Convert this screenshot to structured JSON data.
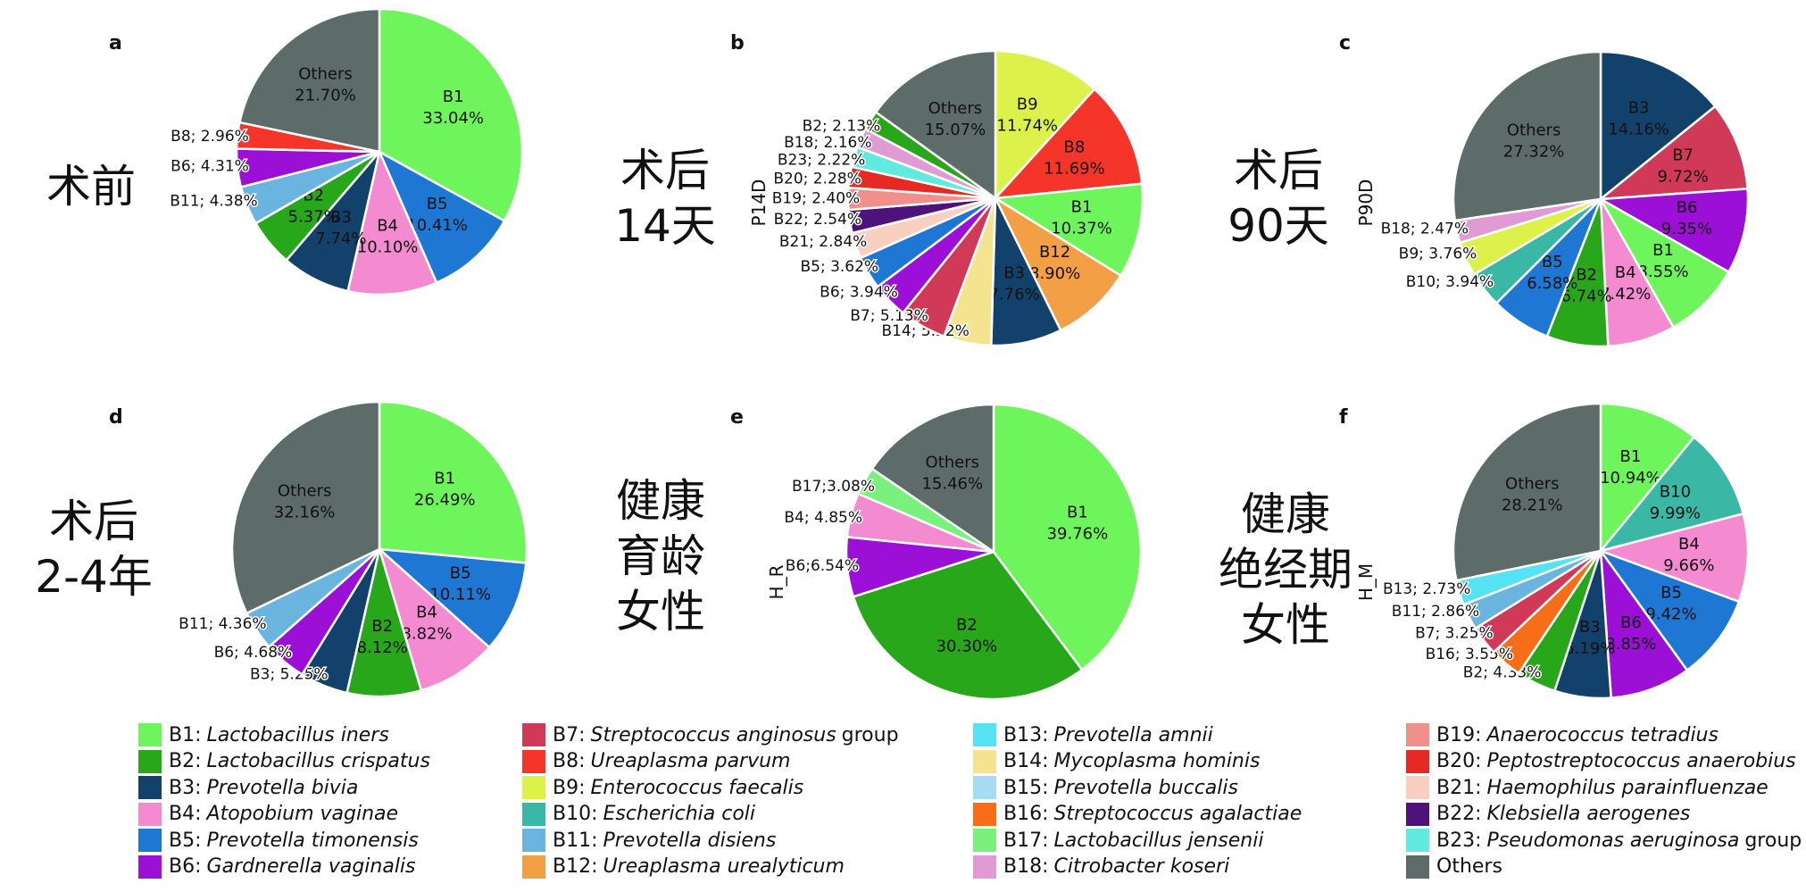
{
  "colors": {
    "B1": "#6ef55b",
    "B2": "#28a71a",
    "B3": "#12426b",
    "B4": "#f48bd0",
    "B5": "#1f77d4",
    "B6": "#9b0fd6",
    "B7": "#d03a58",
    "B8": "#f5352a",
    "B9": "#dcf24a",
    "B10": "#3ab8a5",
    "B11": "#6ab5e0",
    "B12": "#f39f45",
    "B13": "#55e2f2",
    "B14": "#f5e48f",
    "B15": "#a5dcf2",
    "B16": "#f86e18",
    "B17": "#7af07d",
    "B18": "#e09ad4",
    "B19": "#f1908a",
    "B20": "#e62a23",
    "B21": "#f9cfc2",
    "B22": "#4d127c",
    "B23": "#62eadf",
    "Others": "#5d6b69"
  },
  "chart_data": [
    {
      "type": "pie",
      "panel": "a",
      "group_label": "术前",
      "side_label": "",
      "slices": [
        {
          "code": "B1",
          "value": 33.04,
          "label": "B1\n33.04%",
          "outside": false
        },
        {
          "code": "B5",
          "value": 10.41,
          "label": "B5\n10.41%",
          "outside": false
        },
        {
          "code": "B4",
          "value": 10.1,
          "label": "B4\n10.10%",
          "outside": false
        },
        {
          "code": "B3",
          "value": 7.74,
          "label": "B3\n7.74%",
          "outside": false
        },
        {
          "code": "B2",
          "value": 5.37,
          "label": "B2\n5.37%",
          "outside": false
        },
        {
          "code": "B11",
          "value": 4.38,
          "label": "B11; 4.38%",
          "outside": true
        },
        {
          "code": "B6",
          "value": 4.31,
          "label": "B6; 4.31%",
          "outside": true
        },
        {
          "code": "B8",
          "value": 2.96,
          "label": "B8; 2.96%",
          "outside": true
        },
        {
          "code": "Others",
          "value": 21.7,
          "label": "Others\n21.70%",
          "outside": false
        }
      ]
    },
    {
      "type": "pie",
      "panel": "b",
      "group_label": "术后\n14天",
      "side_label": "P14D",
      "slices": [
        {
          "code": "B9",
          "value": 11.74,
          "label": "B9\n11.74%",
          "outside": false
        },
        {
          "code": "B8",
          "value": 11.69,
          "label": "B8\n11.69%",
          "outside": false
        },
        {
          "code": "B1",
          "value": 10.37,
          "label": "B1\n10.37%",
          "outside": false
        },
        {
          "code": "B12",
          "value": 8.9,
          "label": "B12\n8.90%",
          "outside": false
        },
        {
          "code": "B3",
          "value": 7.76,
          "label": "B3\n7.76%",
          "outside": false
        },
        {
          "code": "B14",
          "value": 5.22,
          "label": "B14; 5.22%",
          "outside": true
        },
        {
          "code": "B7",
          "value": 5.13,
          "label": "B7; 5.13%",
          "outside": true
        },
        {
          "code": "B6",
          "value": 3.94,
          "label": "B6; 3.94%",
          "outside": true
        },
        {
          "code": "B5",
          "value": 3.62,
          "label": "B5; 3.62%",
          "outside": true
        },
        {
          "code": "B21",
          "value": 2.84,
          "label": "B21; 2.84%",
          "outside": true
        },
        {
          "code": "B22",
          "value": 2.54,
          "label": "B22; 2.54%",
          "outside": true
        },
        {
          "code": "B19",
          "value": 2.4,
          "label": "B19; 2.40%",
          "outside": true
        },
        {
          "code": "B20",
          "value": 2.28,
          "label": "B20; 2.28%",
          "outside": true
        },
        {
          "code": "B23",
          "value": 2.22,
          "label": "B23; 2.22%",
          "outside": true
        },
        {
          "code": "B18",
          "value": 2.16,
          "label": "B18; 2.16%",
          "outside": true
        },
        {
          "code": "B2",
          "value": 2.13,
          "label": "B2; 2.13%",
          "outside": true
        },
        {
          "code": "Others",
          "value": 15.07,
          "label": "Others\n15.07%",
          "outside": false
        }
      ]
    },
    {
      "type": "pie",
      "panel": "c",
      "group_label": "术后\n90天",
      "side_label": "P90D",
      "slices": [
        {
          "code": "B3",
          "value": 14.16,
          "label": "B3\n14.16%",
          "outside": false
        },
        {
          "code": "B7",
          "value": 9.72,
          "label": "B7\n9.72%",
          "outside": false
        },
        {
          "code": "B6",
          "value": 9.35,
          "label": "B6\n9.35%",
          "outside": false
        },
        {
          "code": "B1",
          "value": 8.55,
          "label": "B1\n8.55%",
          "outside": false
        },
        {
          "code": "B4",
          "value": 7.42,
          "label": "B4\n7.42%",
          "outside": false
        },
        {
          "code": "B2",
          "value": 6.74,
          "label": "B2\n6.74%",
          "outside": false
        },
        {
          "code": "B5",
          "value": 6.58,
          "label": "B5\n6.58%",
          "outside": false
        },
        {
          "code": "B10",
          "value": 3.94,
          "label": "B10; 3.94%",
          "outside": true
        },
        {
          "code": "B9",
          "value": 3.76,
          "label": "B9; 3.76%",
          "outside": true
        },
        {
          "code": "B18",
          "value": 2.47,
          "label": "B18; 2.47%",
          "outside": true
        },
        {
          "code": "Others",
          "value": 27.32,
          "label": "Others\n27.32%",
          "outside": false
        }
      ]
    },
    {
      "type": "pie",
      "panel": "d",
      "group_label": "术后\n2-4年",
      "side_label": "",
      "slices": [
        {
          "code": "B1",
          "value": 26.49,
          "label": "B1\n26.49%",
          "outside": false
        },
        {
          "code": "B5",
          "value": 10.11,
          "label": "B5\n10.11%",
          "outside": false
        },
        {
          "code": "B4",
          "value": 8.82,
          "label": "B4\n8.82%",
          "outside": false
        },
        {
          "code": "B2",
          "value": 8.12,
          "label": "B2\n8.12%",
          "outside": false
        },
        {
          "code": "B3",
          "value": 5.25,
          "label": "B3; 5.25%",
          "outside": true
        },
        {
          "code": "B6",
          "value": 4.68,
          "label": "B6; 4.68%",
          "outside": true
        },
        {
          "code": "B11",
          "value": 4.36,
          "label": "B11; 4.36%",
          "outside": true
        },
        {
          "code": "Others",
          "value": 32.16,
          "label": "Others\n32.16%",
          "outside": false
        }
      ]
    },
    {
      "type": "pie",
      "panel": "e",
      "group_label": "健康\n育龄\n女性",
      "side_label": "H_R",
      "slices": [
        {
          "code": "B1",
          "value": 39.76,
          "label": "B1\n39.76%",
          "outside": false
        },
        {
          "code": "B2",
          "value": 30.3,
          "label": "B2\n30.30%",
          "outside": false
        },
        {
          "code": "B6",
          "value": 6.54,
          "label": "B6;6.54%",
          "outside": true
        },
        {
          "code": "B4",
          "value": 4.85,
          "label": "B4; 4.85%",
          "outside": true
        },
        {
          "code": "B17",
          "value": 3.08,
          "label": "B17;3.08%",
          "outside": true
        },
        {
          "code": "Others",
          "value": 15.46,
          "label": "Others\n15.46%",
          "outside": false
        }
      ]
    },
    {
      "type": "pie",
      "panel": "f",
      "group_label": "健康\n绝经期\n女性",
      "side_label": "H_M",
      "slices": [
        {
          "code": "B1",
          "value": 10.94,
          "label": "B1\n10.94%",
          "outside": false
        },
        {
          "code": "B10",
          "value": 9.99,
          "label": "B10\n9.99%",
          "outside": false
        },
        {
          "code": "B4",
          "value": 9.66,
          "label": "B4\n9.66%",
          "outside": false
        },
        {
          "code": "B5",
          "value": 9.42,
          "label": "B5\n9.42%",
          "outside": false
        },
        {
          "code": "B6",
          "value": 8.85,
          "label": "B6\n8.85%",
          "outside": false
        },
        {
          "code": "B3",
          "value": 6.19,
          "label": "B3\n6.19%",
          "outside": false
        },
        {
          "code": "B2",
          "value": 4.33,
          "label": "B2; 4.33%",
          "outside": true
        },
        {
          "code": "B16",
          "value": 3.55,
          "label": "B16; 3.55%",
          "outside": true
        },
        {
          "code": "B7",
          "value": 3.25,
          "label": "B7; 3.25%",
          "outside": true
        },
        {
          "code": "B11",
          "value": 2.86,
          "label": "B11; 2.86%",
          "outside": true
        },
        {
          "code": "B13",
          "value": 2.73,
          "label": "B13; 2.73%",
          "outside": true
        },
        {
          "code": "Others",
          "value": 28.21,
          "label": "Others\n28.21%",
          "outside": false
        }
      ]
    }
  ],
  "legend": [
    {
      "code": "B1",
      "species": "Lactobacillus iners",
      "suffix": ""
    },
    {
      "code": "B2",
      "species": "Lactobacillus crispatus",
      "suffix": ""
    },
    {
      "code": "B3",
      "species": "Prevotella bivia",
      "suffix": ""
    },
    {
      "code": "B4",
      "species": "Atopobium vaginae",
      "suffix": ""
    },
    {
      "code": "B5",
      "species": "Prevotella timonensis",
      "suffix": ""
    },
    {
      "code": "B6",
      "species": "Gardnerella vaginalis",
      "suffix": ""
    },
    {
      "code": "B7",
      "species": "Streptococcus anginosus",
      "suffix": "group"
    },
    {
      "code": "B8",
      "species": "Ureaplasma parvum",
      "suffix": ""
    },
    {
      "code": "B9",
      "species": "Enterococcus faecalis",
      "suffix": ""
    },
    {
      "code": "B10",
      "species": "Escherichia coli",
      "suffix": ""
    },
    {
      "code": "B11",
      "species": "Prevotella disiens",
      "suffix": ""
    },
    {
      "code": "B12",
      "species": "Ureaplasma urealyticum",
      "suffix": ""
    },
    {
      "code": "B13",
      "species": "Prevotella amnii",
      "suffix": ""
    },
    {
      "code": "B14",
      "species": "Mycoplasma hominis",
      "suffix": ""
    },
    {
      "code": "B15",
      "species": "Prevotella buccalis",
      "suffix": ""
    },
    {
      "code": "B16",
      "species": "Streptococcus agalactiae",
      "suffix": ""
    },
    {
      "code": "B17",
      "species": "Lactobacillus jensenii",
      "suffix": ""
    },
    {
      "code": "B18",
      "species": "Citrobacter koseri",
      "suffix": ""
    },
    {
      "code": "B19",
      "species": "Anaerococcus tetradius",
      "suffix": ""
    },
    {
      "code": "B20",
      "species": "Peptostreptococcus anaerobius",
      "suffix": ""
    },
    {
      "code": "B21",
      "species": "Haemophilus parainfluenzae",
      "suffix": ""
    },
    {
      "code": "B22",
      "species": "Klebsiella aerogenes",
      "suffix": ""
    },
    {
      "code": "B23",
      "species": "Pseudomonas aeruginosa",
      "suffix": "group"
    },
    {
      "code": "Others",
      "species": "",
      "suffix": ""
    }
  ]
}
